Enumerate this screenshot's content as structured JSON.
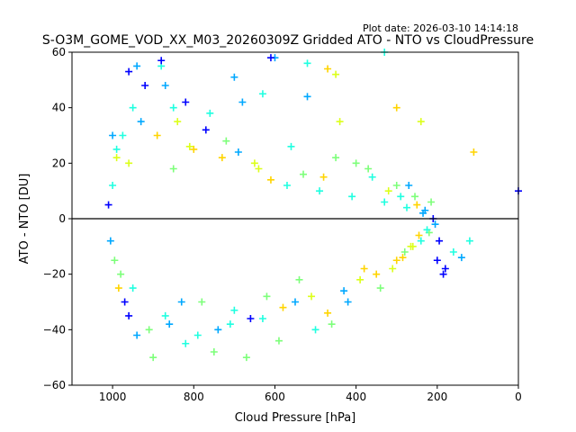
{
  "plot_date": "Plot date: 2026-03-10 14:14:18",
  "chart_data": {
    "type": "scatter",
    "title": "S-O3M_GOME_VOD_XX_M03_20260309Z Gridded ATO - NTO vs CloudPressure",
    "xlabel": "Cloud Pressure [hPa]",
    "ylabel": "ATO - NTO [DU]",
    "xlim": [
      1100,
      0
    ],
    "ylim": [
      -60,
      60
    ],
    "x_reversed": true,
    "x_ticks": [
      1000,
      800,
      600,
      400,
      200,
      0
    ],
    "y_ticks": [
      -60,
      -40,
      -20,
      0,
      20,
      40,
      60
    ],
    "reference_line_y": 0,
    "marker": "plus",
    "grid": false,
    "legend": "none",
    "colormap": [
      "#0000ff",
      "#00a8ff",
      "#1fffe0",
      "#7dff7a",
      "#dcff1a",
      "#ffd400"
    ],
    "series": [
      {
        "x": [
          1010,
          1005,
          1000,
          995,
          990,
          985,
          975,
          960,
          950,
          940,
          920,
          900,
          880,
          860,
          840,
          820,
          800,
          780,
          760,
          740,
          720,
          700,
          680,
          660,
          640,
          620,
          600,
          580,
          560,
          540,
          520,
          500,
          480,
          460,
          440,
          420,
          400,
          380,
          360,
          340,
          320,
          300,
          290,
          280,
          270,
          260,
          250,
          240,
          230,
          220,
          210,
          200,
          180,
          160,
          140,
          120,
          110,
          0,
          1000,
          990,
          980,
          970,
          960,
          950,
          930,
          910,
          890,
          870,
          850,
          830,
          810,
          790,
          770,
          750,
          730,
          710,
          690,
          670,
          650,
          630,
          610,
          590,
          570,
          550,
          530,
          510,
          490,
          470,
          450,
          430,
          410,
          390,
          370,
          350,
          330,
          310,
          300,
          285,
          275,
          265,
          255,
          245,
          235,
          225,
          215,
          205,
          195,
          185,
          960,
          940,
          880,
          870,
          850,
          820,
          700,
          630,
          610,
          520,
          470,
          450,
          330,
          300,
          240
        ],
        "y": [
          5,
          -8,
          12,
          -15,
          22,
          -25,
          30,
          -35,
          40,
          -42,
          48,
          -50,
          55,
          -38,
          35,
          -45,
          25,
          -30,
          38,
          -40,
          28,
          -33,
          42,
          -36,
          18,
          -28,
          58,
          -32,
          26,
          -22,
          44,
          -40,
          15,
          -38,
          35,
          -30,
          20,
          -18,
          15,
          -25,
          10,
          -15,
          8,
          -12,
          12,
          -10,
          5,
          -8,
          3,
          -5,
          0,
          -15,
          -18,
          -12,
          -14,
          -8,
          24,
          10,
          30,
          25,
          -20,
          -30,
          20,
          -25,
          35,
          -40,
          30,
          -35,
          18,
          -30,
          26,
          -42,
          32,
          -48,
          22,
          -38,
          24,
          -50,
          20,
          -36,
          14,
          -44,
          12,
          -30,
          16,
          -28,
          10,
          -34,
          22,
          -26,
          8,
          -22,
          18,
          -20,
          6,
          -18,
          12,
          -14,
          4,
          -10,
          8,
          -6,
          2,
          -4,
          6,
          -2,
          -8,
          -20,
          53,
          55,
          57,
          48,
          40,
          42,
          51,
          45,
          58,
          56,
          54,
          52,
          60,
          40,
          35
        ],
        "c": [
          0,
          1,
          2,
          3,
          4,
          5,
          2,
          0,
          2,
          1,
          0,
          3,
          2,
          1,
          4,
          2,
          5,
          3,
          2,
          1,
          3,
          2,
          1,
          0,
          4,
          3,
          1,
          5,
          2,
          3,
          1,
          2,
          5,
          3,
          4,
          1,
          3,
          5,
          2,
          3,
          4,
          5,
          2,
          3,
          1,
          4,
          5,
          2,
          1,
          3,
          0,
          0,
          0,
          2,
          1,
          2,
          5,
          0,
          1,
          2,
          3,
          0,
          4,
          2,
          1,
          3,
          5,
          2,
          3,
          1,
          4,
          2,
          0,
          3,
          5,
          2,
          1,
          3,
          4,
          2,
          5,
          3,
          2,
          1,
          3,
          4,
          2,
          5,
          3,
          1,
          2,
          4,
          3,
          5,
          2,
          4,
          3,
          5,
          2,
          4,
          3,
          5,
          1,
          2,
          3,
          1,
          0,
          0,
          0,
          1,
          0,
          1,
          2,
          0,
          1,
          2,
          0,
          2,
          5,
          4,
          2,
          5,
          4
        ]
      }
    ]
  }
}
